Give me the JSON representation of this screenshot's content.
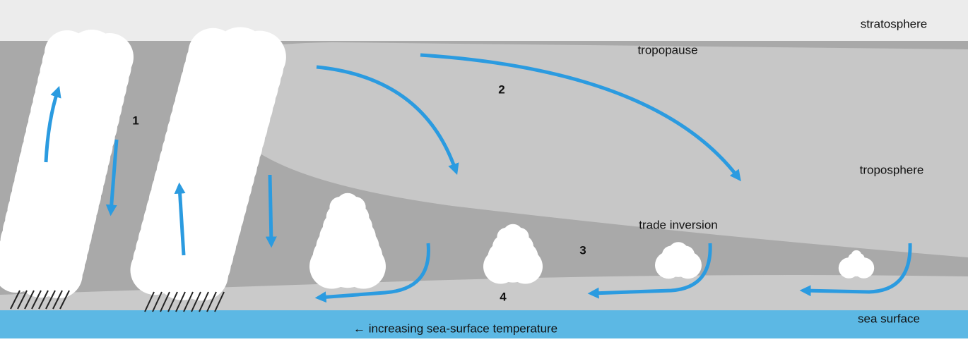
{
  "labels": {
    "stratosphere": "stratosphere",
    "tropopause": "tropopause",
    "troposphere": "troposphere",
    "trade_inversion": "trade inversion",
    "sea_surface": "sea surface"
  },
  "regions": [
    "1",
    "2",
    "3",
    "4"
  ],
  "caption": "← increasing sea-surface temperature"
}
